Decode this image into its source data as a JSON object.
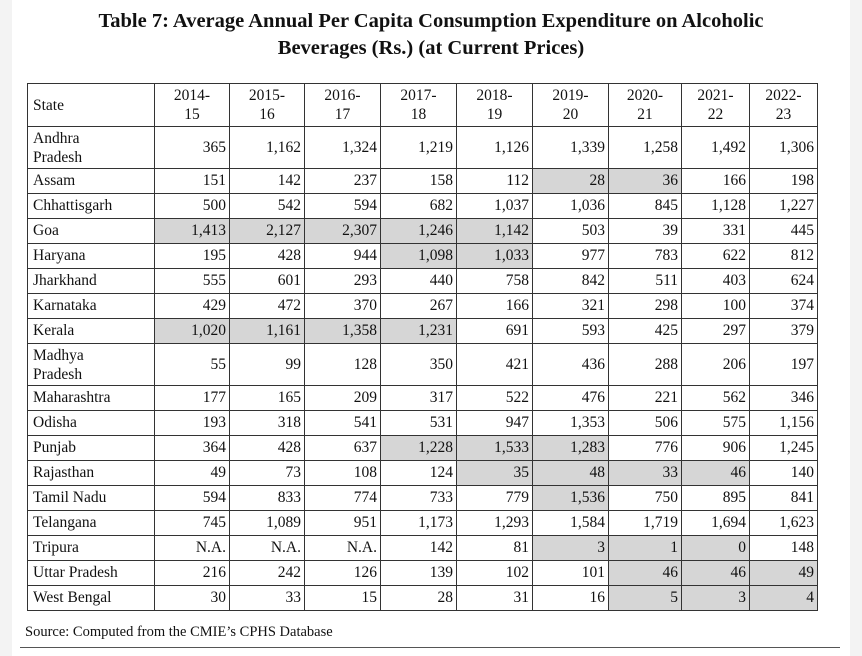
{
  "title_line1": "Table 7: Average Annual Per Capita Consumption Expenditure on Alcoholic",
  "title_line2": "Beverages (Rs.) (at Current Prices)",
  "state_header": "State",
  "years": [
    [
      "2014-",
      "15"
    ],
    [
      "2015-",
      "16"
    ],
    [
      "2016-",
      "17"
    ],
    [
      "2017-",
      "18"
    ],
    [
      "2018-",
      "19"
    ],
    [
      "2019-",
      "20"
    ],
    [
      "2020-",
      "21"
    ],
    [
      "2021-",
      "22"
    ],
    [
      "2022-",
      "23"
    ]
  ],
  "rows": [
    {
      "state": [
        "Andhra",
        "Pradesh"
      ],
      "values": [
        "365",
        "1,162",
        "1,324",
        "1,219",
        "1,126",
        "1,339",
        "1,258",
        "1,492",
        "1,306"
      ],
      "hl": []
    },
    {
      "state": [
        "Assam"
      ],
      "values": [
        "151",
        "142",
        "237",
        "158",
        "112",
        "28",
        "36",
        "166",
        "198"
      ],
      "hl": [
        5,
        6
      ]
    },
    {
      "state": [
        "Chhattisgarh"
      ],
      "values": [
        "500",
        "542",
        "594",
        "682",
        "1,037",
        "1,036",
        "845",
        "1,128",
        "1,227"
      ],
      "hl": []
    },
    {
      "state": [
        "Goa"
      ],
      "values": [
        "1,413",
        "2,127",
        "2,307",
        "1,246",
        "1,142",
        "503",
        "39",
        "331",
        "445"
      ],
      "hl": [
        0,
        1,
        2,
        3,
        4
      ]
    },
    {
      "state": [
        "Haryana"
      ],
      "values": [
        "195",
        "428",
        "944",
        "1,098",
        "1,033",
        "977",
        "783",
        "622",
        "812"
      ],
      "hl": [
        3,
        4
      ]
    },
    {
      "state": [
        "Jharkhand"
      ],
      "values": [
        "555",
        "601",
        "293",
        "440",
        "758",
        "842",
        "511",
        "403",
        "624"
      ],
      "hl": []
    },
    {
      "state": [
        "Karnataka"
      ],
      "values": [
        "429",
        "472",
        "370",
        "267",
        "166",
        "321",
        "298",
        "100",
        "374"
      ],
      "hl": []
    },
    {
      "state": [
        "Kerala"
      ],
      "values": [
        "1,020",
        "1,161",
        "1,358",
        "1,231",
        "691",
        "593",
        "425",
        "297",
        "379"
      ],
      "hl": [
        0,
        1,
        2,
        3
      ]
    },
    {
      "state": [
        "Madhya",
        "Pradesh"
      ],
      "values": [
        "55",
        "99",
        "128",
        "350",
        "421",
        "436",
        "288",
        "206",
        "197"
      ],
      "hl": []
    },
    {
      "state": [
        "Maharashtra"
      ],
      "values": [
        "177",
        "165",
        "209",
        "317",
        "522",
        "476",
        "221",
        "562",
        "346"
      ],
      "hl": []
    },
    {
      "state": [
        "Odisha"
      ],
      "values": [
        "193",
        "318",
        "541",
        "531",
        "947",
        "1,353",
        "506",
        "575",
        "1,156"
      ],
      "hl": []
    },
    {
      "state": [
        "Punjab"
      ],
      "values": [
        "364",
        "428",
        "637",
        "1,228",
        "1,533",
        "1,283",
        "776",
        "906",
        "1,245"
      ],
      "hl": [
        3,
        4,
        5
      ]
    },
    {
      "state": [
        "Rajasthan"
      ],
      "values": [
        "49",
        "73",
        "108",
        "124",
        "35",
        "48",
        "33",
        "46",
        "140"
      ],
      "hl": [
        4,
        5,
        6,
        7
      ]
    },
    {
      "state": [
        "Tamil Nadu"
      ],
      "values": [
        "594",
        "833",
        "774",
        "733",
        "779",
        "1,536",
        "750",
        "895",
        "841"
      ],
      "hl": [
        5
      ]
    },
    {
      "state": [
        "Telangana"
      ],
      "values": [
        "745",
        "1,089",
        "951",
        "1,173",
        "1,293",
        "1,584",
        "1,719",
        "1,694",
        "1,623"
      ],
      "hl": []
    },
    {
      "state": [
        "Tripura"
      ],
      "values": [
        "N.A.",
        "N.A.",
        "N.A.",
        "142",
        "81",
        "3",
        "1",
        "0",
        "148"
      ],
      "hl": [
        5,
        6,
        7
      ]
    },
    {
      "state": [
        "Uttar Pradesh"
      ],
      "values": [
        "216",
        "242",
        "126",
        "139",
        "102",
        "101",
        "46",
        "46",
        "49"
      ],
      "hl": [
        6,
        7,
        8
      ]
    },
    {
      "state": [
        "West Bengal"
      ],
      "values": [
        "30",
        "33",
        "15",
        "28",
        "31",
        "16",
        "5",
        "3",
        "4"
      ],
      "hl": [
        6,
        7,
        8
      ]
    }
  ],
  "source": "Source: Computed from the CMIE’s CPHS Database"
}
